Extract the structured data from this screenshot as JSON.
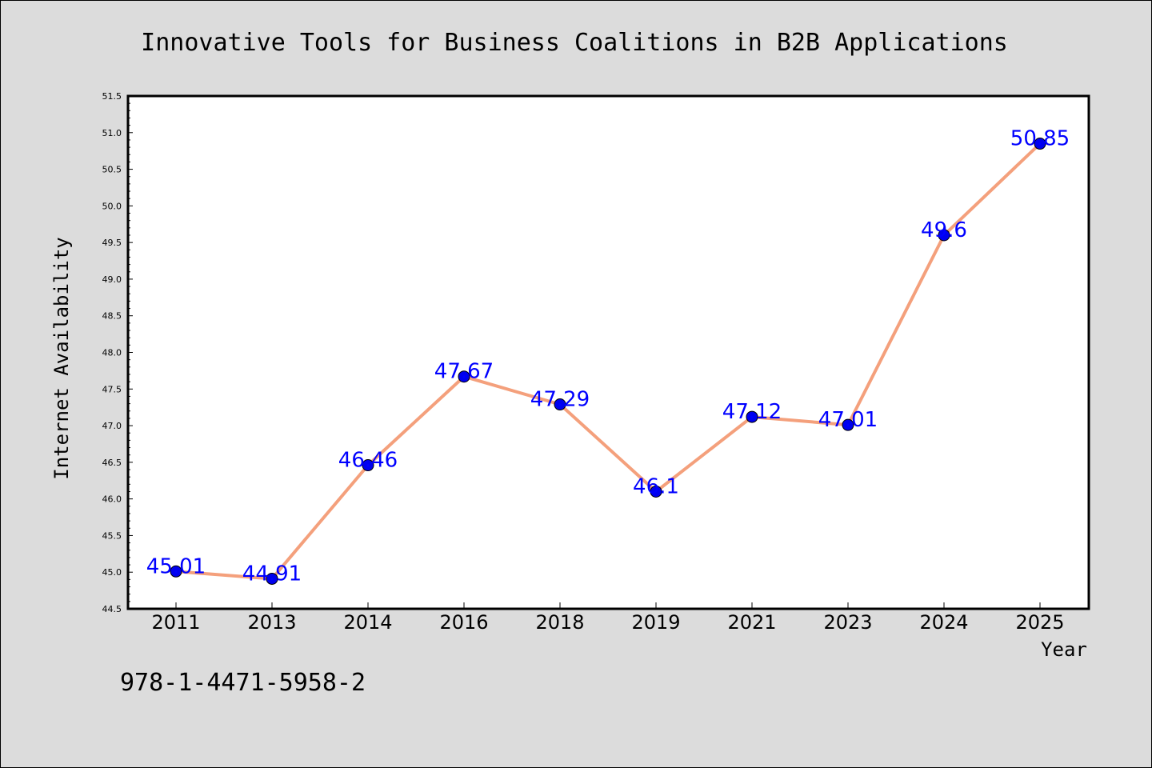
{
  "chart_data": {
    "type": "line",
    "title": "Innovative Tools for Business Coalitions in B2B Applications",
    "xlabel": "Year",
    "ylabel": "Internet Availability",
    "categories": [
      "2011",
      "2013",
      "2014",
      "2016",
      "2018",
      "2019",
      "2021",
      "2023",
      "2024",
      "2025"
    ],
    "series": [
      {
        "values": [
          45.01,
          44.91,
          46.46,
          47.67,
          47.29,
          46.1,
          47.12,
          47.01,
          49.6,
          50.85
        ]
      }
    ],
    "data_labels": [
      "45.01",
      "44.91",
      "46.46",
      "47.67",
      "47.29",
      "46.1",
      "47.12",
      "47.01",
      "49.6",
      "50.85"
    ],
    "ylim": [
      44.5,
      51.5
    ],
    "y_ticks": [
      "44.5",
      "45.0",
      "45.5",
      "46.0",
      "46.5",
      "47.0",
      "47.5",
      "48.0",
      "48.5",
      "49.0",
      "49.5",
      "50.0",
      "50.5",
      "51.0",
      "51.5"
    ],
    "grid": false,
    "legend": "none",
    "colors": {
      "line": "#f4a07c",
      "marker": "#0000ee",
      "data_label": "#0000ff",
      "plot_background": "#ffffff",
      "figure_background": "#dcdcdc"
    }
  },
  "footer": {
    "isbn": "978-1-4471-5958-2"
  }
}
